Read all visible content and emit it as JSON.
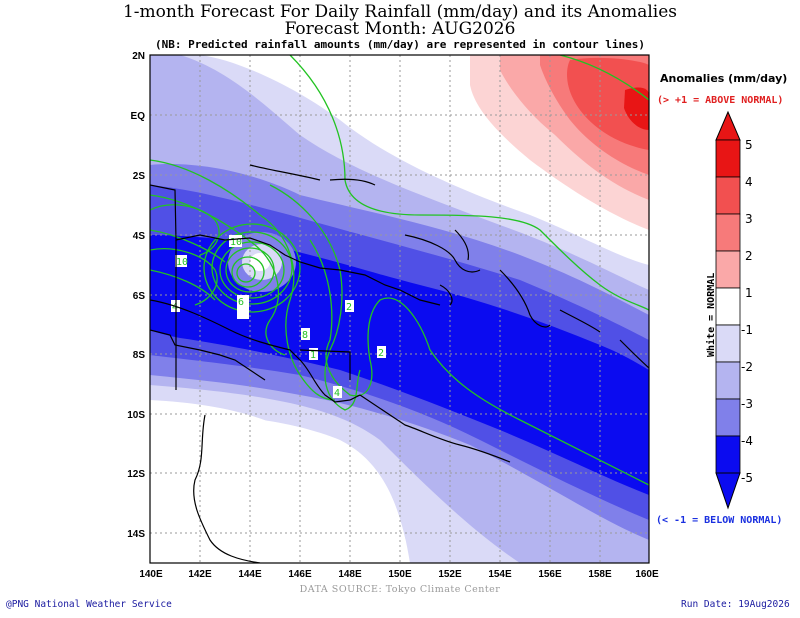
{
  "header": {
    "title": "1-month Forecast For Daily Rainfall (mm/day) and its Anomalies",
    "subtitle": "Forecast Month: AUG2026",
    "note": "(NB: Predicted rainfall amounts (mm/day) are represented in contour lines)"
  },
  "map": {
    "lat_labels": [
      "2N",
      "EQ",
      "2S",
      "4S",
      "6S",
      "8S",
      "10S",
      "12S",
      "14S"
    ],
    "lon_labels": [
      "140E",
      "142E",
      "144E",
      "146E",
      "148E",
      "150E",
      "152E",
      "154E",
      "156E",
      "158E",
      "160E"
    ],
    "contour_labels": [
      "10",
      "10",
      "8",
      "4",
      "2",
      "2",
      "1",
      "4",
      "6"
    ],
    "contour_color": "#22c322"
  },
  "legend": {
    "title": "Anomalies (mm/day)",
    "above": "(> +1 = ABOVE NORMAL)",
    "below": "(< -1 = BELOW NORMAL)",
    "white_label": "White = NORMAL",
    "ticks": [
      "5",
      "4",
      "3",
      "2",
      "1",
      "-1",
      "-2",
      "-3",
      "-4",
      "-5"
    ],
    "colors": {
      "pos5": "#e81515",
      "pos4": "#f25050",
      "pos3": "#f77a7a",
      "pos2": "#faa8a8",
      "pos1": "#fcd4d4",
      "neutral": "#ffffff",
      "neg1": "#dadaf7",
      "neg2": "#b4b4f0",
      "neg3": "#8080ea",
      "neg4": "#5050e6",
      "neg5": "#0b0bf0"
    }
  },
  "footer": {
    "source": "DATA SOURCE: Tokyo Climate Center",
    "credit": "@PNG National Weather Service",
    "run_date": "Run Date: 19Aug2026"
  }
}
